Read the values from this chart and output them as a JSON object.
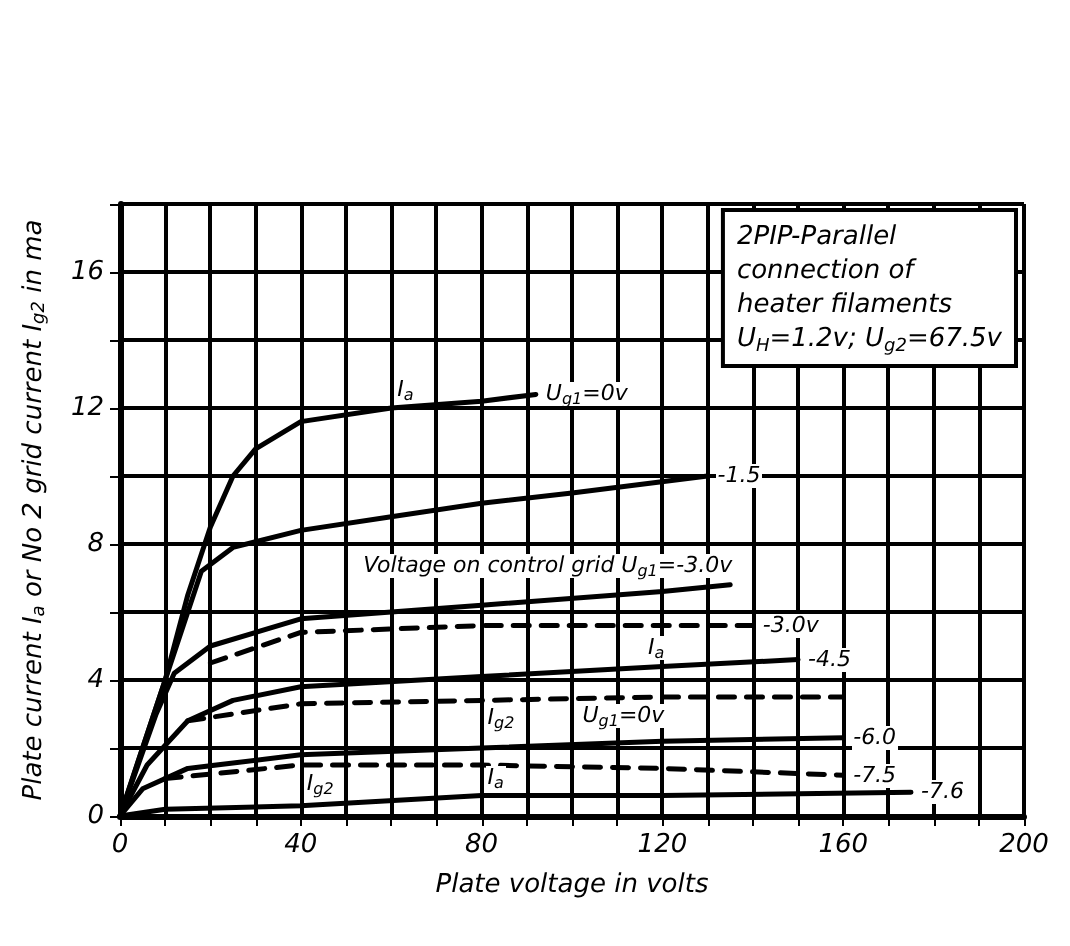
{
  "chart_data": {
    "type": "line",
    "xlabel": "Plate voltage in volts",
    "ylabel": "Plate current I$_{a}$ or No 2 grid current I$_{g2}$ in ma",
    "xlim": [
      0,
      200
    ],
    "ylim": [
      0,
      18
    ],
    "xticks": [
      0,
      {
        "value": 10,
        "label": null
      },
      {
        "value": 20,
        "label": null
      },
      {
        "value": 30,
        "label": null
      },
      40,
      {
        "value": 50,
        "label": null
      },
      {
        "value": 60,
        "label": null
      },
      {
        "value": 70,
        "label": null
      },
      80,
      {
        "value": 90,
        "label": null
      },
      {
        "value": 100,
        "label": null
      },
      {
        "value": 110,
        "label": null
      },
      120,
      {
        "value": 130,
        "label": null
      },
      {
        "value": 140,
        "label": null
      },
      {
        "value": 150,
        "label": null
      },
      160,
      {
        "value": 170,
        "label": null
      },
      {
        "value": 180,
        "label": null
      },
      {
        "value": 190,
        "label": null
      },
      200
    ],
    "yticks": [
      0,
      {
        "value": 2,
        "label": null
      },
      4,
      {
        "value": 6,
        "label": null
      },
      8,
      {
        "value": 10,
        "label": null
      },
      12,
      {
        "value": 14,
        "label": null
      },
      16,
      {
        "value": 18,
        "label": null
      }
    ],
    "grid": true,
    "marker": "none",
    "series": [
      {
        "color": "#000000",
        "line_style": "solid",
        "x": [
          0,
          10,
          15,
          20,
          25,
          30,
          40,
          60,
          80,
          92
        ],
        "values": [
          0,
          4,
          6.5,
          8.5,
          10,
          10.8,
          11.6,
          12,
          12.2,
          12.4
        ]
      },
      {
        "color": "#000000",
        "line_style": "solid",
        "x": [
          0,
          10,
          18,
          25,
          40,
          60,
          80,
          100,
          130
        ],
        "values": [
          0,
          4,
          7.2,
          7.9,
          8.4,
          8.8,
          9.2,
          9.5,
          10
        ]
      },
      {
        "color": "#000000",
        "line_style": "solid",
        "x": [
          0,
          8,
          12,
          20,
          40,
          80,
          120,
          135
        ],
        "values": [
          0,
          3,
          4.2,
          5,
          5.8,
          6.2,
          6.6,
          6.8
        ]
      },
      {
        "color": "#000000",
        "line_style": "solid",
        "x": [
          0,
          6,
          15,
          25,
          40,
          80,
          120,
          150
        ],
        "values": [
          0,
          1.5,
          2.8,
          3.4,
          3.8,
          4.1,
          4.4,
          4.6
        ]
      },
      {
        "color": "#000000",
        "line_style": "solid",
        "x": [
          0,
          5,
          15,
          40,
          80,
          120,
          160
        ],
        "values": [
          0,
          0.8,
          1.4,
          1.8,
          2,
          2.2,
          2.3
        ]
      },
      {
        "color": "#000000",
        "line_style": "solid",
        "x": [
          0,
          10,
          40,
          80,
          120,
          175
        ],
        "values": [
          0,
          0.2,
          0.3,
          0.6,
          0.6,
          0.7
        ]
      },
      {
        "color": "#000000",
        "line_style": "dashed",
        "x": [
          20,
          40,
          80,
          120,
          140
        ],
        "values": [
          4.5,
          5.4,
          5.6,
          5.6,
          5.6
        ]
      },
      {
        "color": "#000000",
        "line_style": "dashed",
        "x": [
          15,
          40,
          80,
          120,
          160
        ],
        "values": [
          2.8,
          3.3,
          3.4,
          3.5,
          3.5
        ]
      },
      {
        "color": "#000000",
        "line_style": "dashed",
        "x": [
          10,
          40,
          80,
          120,
          160
        ],
        "values": [
          1.1,
          1.5,
          1.5,
          1.4,
          1.2
        ]
      }
    ],
    "annotations": [
      "2PIP-Parallel\nconnection of\nheater filaments\nU$_{H}$=1.2v; U$_{g2}$=67.5v",
      {
        "text": "I$_{a}$",
        "x": 60,
        "y": 12
      },
      {
        "text": "U$_{g1}$=0v",
        "x": 92,
        "y": 12.4
      },
      {
        "text": "-1.5",
        "x": 130,
        "y": 10
      },
      {
        "text": "Voltage on control grid U$_{g1}$=-3.0v",
        "x": 135,
        "y": 6.8
      },
      {
        "text": "-3.0v",
        "x": 140,
        "y": 5.6
      },
      {
        "text": "I$_{a}$",
        "x": 120,
        "y": 4.4
      },
      {
        "text": "-4.5",
        "x": 150,
        "y": 4.6
      },
      {
        "text": "I$_{g2}$",
        "x": 80,
        "y": 3.4
      },
      {
        "text": "U$_{g1}$=0v",
        "x": 120,
        "y": 3.5
      },
      {
        "text": "-6.0",
        "x": 160,
        "y": 2.3
      },
      {
        "text": "-7.5",
        "x": 160,
        "y": 1.2
      },
      {
        "text": "-7.6",
        "x": 175,
        "y": 0.7
      },
      {
        "text": "I$_{g2}$",
        "x": 40,
        "y": 1.5
      },
      {
        "text": "I$_{a}$",
        "x": 80,
        "y": 0.6
      }
    ]
  }
}
